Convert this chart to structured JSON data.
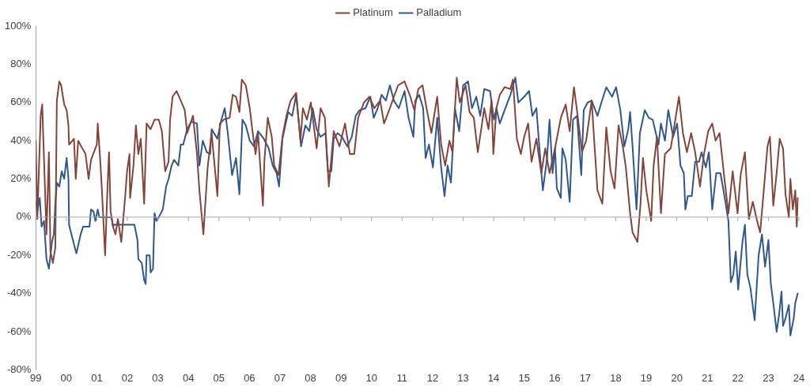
{
  "chart_data": {
    "type": "line",
    "legend": "top",
    "marker": "none",
    "line_style": "solid",
    "grid": false,
    "ref_lines": [
      {
        "axis": "y",
        "value": 0,
        "color": "#a6a6a6"
      }
    ],
    "xlim": [
      1999,
      2024
    ],
    "xticks": [
      {
        "value": 1999,
        "label": "99"
      },
      {
        "value": 2000,
        "label": "00"
      },
      {
        "value": 2001,
        "label": "01"
      },
      {
        "value": 2002,
        "label": "02"
      },
      {
        "value": 2003,
        "label": "03"
      },
      {
        "value": 2004,
        "label": "04"
      },
      {
        "value": 2005,
        "label": "05"
      },
      {
        "value": 2006,
        "label": "06"
      },
      {
        "value": 2007,
        "label": "07"
      },
      {
        "value": 2008,
        "label": "08"
      },
      {
        "value": 2009,
        "label": "09"
      },
      {
        "value": 2010,
        "label": "10"
      },
      {
        "value": 2011,
        "label": "11"
      },
      {
        "value": 2012,
        "label": "12"
      },
      {
        "value": 2013,
        "label": "13"
      },
      {
        "value": 2014,
        "label": "14"
      },
      {
        "value": 2015,
        "label": "15"
      },
      {
        "value": 2016,
        "label": "16"
      },
      {
        "value": 2017,
        "label": "17"
      },
      {
        "value": 2018,
        "label": "18"
      },
      {
        "value": 2019,
        "label": "19"
      },
      {
        "value": 2020,
        "label": "20"
      },
      {
        "value": 2021,
        "label": "21"
      },
      {
        "value": 2022,
        "label": "22"
      },
      {
        "value": 2023,
        "label": "23"
      },
      {
        "value": 2024,
        "label": "24"
      }
    ],
    "ylim": [
      -80,
      100
    ],
    "yticks": [
      {
        "value": -80,
        "label": "-80%"
      },
      {
        "value": -60,
        "label": "-60%"
      },
      {
        "value": -40,
        "label": "-40%"
      },
      {
        "value": -20,
        "label": "-20%"
      },
      {
        "value": 0,
        "label": "0%"
      },
      {
        "value": 20,
        "label": "20%"
      },
      {
        "value": 40,
        "label": "40%"
      },
      {
        "value": 60,
        "label": "60%"
      },
      {
        "value": 80,
        "label": "80%"
      },
      {
        "value": 100,
        "label": "100%"
      }
    ],
    "series": [
      {
        "name": "Platinum",
        "color": "#84443a",
        "x": [
          1999.0,
          1999.05,
          1999.16,
          1999.21,
          1999.27,
          1999.35,
          1999.43,
          1999.48,
          1999.56,
          1999.64,
          1999.69,
          1999.77,
          1999.83,
          1999.93,
          2000.01,
          2000.07,
          2000.09,
          2000.2,
          2000.25,
          2000.31,
          2000.39,
          2000.49,
          2000.63,
          2000.73,
          2000.81,
          2001.0,
          2001.03,
          2001.11,
          2001.16,
          2001.27,
          2001.35,
          2001.4,
          2001.45,
          2001.53,
          2001.61,
          2001.69,
          2001.8,
          2001.93,
          2001.99,
          2002.07,
          2002.09,
          2002.2,
          2002.28,
          2002.36,
          2002.44,
          2002.55,
          2002.63,
          2002.76,
          2002.89,
          2003.03,
          2003.13,
          2003.24,
          2003.35,
          2003.4,
          2003.48,
          2003.61,
          2003.75,
          2003.88,
          2003.96,
          2004.15,
          2004.28,
          2004.36,
          2004.49,
          2004.63,
          2004.76,
          2004.95,
          2005.03,
          2005.16,
          2005.35,
          2005.45,
          2005.56,
          2005.67,
          2005.75,
          2005.88,
          2006.01,
          2006.09,
          2006.2,
          2006.28,
          2006.44,
          2006.49,
          2006.6,
          2006.73,
          2006.81,
          2006.95,
          2007.08,
          2007.21,
          2007.35,
          2007.53,
          2007.67,
          2007.75,
          2007.88,
          2008.01,
          2008.2,
          2008.33,
          2008.47,
          2008.6,
          2008.76,
          2008.95,
          2009.13,
          2009.29,
          2009.43,
          2009.56,
          2009.75,
          2009.93,
          2010.09,
          2010.28,
          2010.41,
          2010.6,
          2010.73,
          2010.87,
          2011.08,
          2011.27,
          2011.4,
          2011.53,
          2011.67,
          2011.8,
          2011.96,
          2012.15,
          2012.28,
          2012.41,
          2012.55,
          2012.65,
          2012.79,
          2012.89,
          2013.08,
          2013.21,
          2013.35,
          2013.48,
          2013.61,
          2013.69,
          2013.83,
          2013.93,
          2013.99,
          2014.09,
          2014.2,
          2014.36,
          2014.55,
          2014.63,
          2014.76,
          2014.89,
          2015.0,
          2015.13,
          2015.24,
          2015.4,
          2015.56,
          2015.69,
          2015.83,
          2016.01,
          2016.2,
          2016.36,
          2016.49,
          2016.63,
          2016.76,
          2016.89,
          2017.03,
          2017.21,
          2017.29,
          2017.4,
          2017.56,
          2017.69,
          2017.83,
          2017.96,
          2018.09,
          2018.23,
          2018.33,
          2018.47,
          2018.55,
          2018.71,
          2018.81,
          2018.89,
          2019.0,
          2019.16,
          2019.24,
          2019.35,
          2019.48,
          2019.61,
          2019.8,
          2019.93,
          2020.07,
          2020.2,
          2020.33,
          2020.47,
          2020.6,
          2020.76,
          2020.89,
          2021.03,
          2021.16,
          2021.27,
          2021.4,
          2021.56,
          2021.69,
          2021.83,
          2021.99,
          2022.09,
          2022.23,
          2022.36,
          2022.49,
          2022.63,
          2022.73,
          2022.87,
          2022.97,
          2023.05,
          2023.16,
          2023.27,
          2023.37,
          2023.48,
          2023.56,
          2023.67,
          2023.72,
          2023.8,
          2023.88,
          2023.93,
          2023.96
        ],
        "values": [
          40,
          -1,
          53,
          59,
          30,
          -9,
          34,
          -18,
          -24,
          -16,
          61,
          71,
          69,
          59,
          56,
          48,
          38,
          40,
          41,
          20,
          40,
          37,
          33,
          20,
          30,
          38,
          49,
          30,
          16,
          -20,
          16,
          34,
          3,
          -5,
          -9,
          -1,
          -13,
          11,
          24,
          33,
          10,
          27,
          48,
          33,
          41,
          7,
          49,
          46,
          51,
          51,
          45,
          24,
          29,
          51,
          63,
          66,
          61,
          56,
          44,
          53,
          33,
          14,
          -9,
          26,
          44,
          11,
          49,
          51,
          52,
          64,
          63,
          55,
          72,
          69,
          57,
          46,
          33,
          44,
          6,
          30,
          52,
          42,
          27,
          22,
          42,
          53,
          61,
          65,
          40,
          57,
          51,
          60,
          36,
          57,
          52,
          16,
          45,
          37,
          49,
          33,
          33,
          52,
          60,
          63,
          57,
          61,
          49,
          57,
          63,
          69,
          71,
          63,
          56,
          67,
          69,
          57,
          44,
          63,
          38,
          27,
          40,
          34,
          73,
          60,
          69,
          55,
          52,
          34,
          48,
          57,
          46,
          61,
          33,
          57,
          64,
          68,
          67,
          72,
          41,
          33,
          42,
          49,
          29,
          41,
          23,
          36,
          23,
          36,
          52,
          59,
          45,
          68,
          52,
          34,
          40,
          61,
          41,
          14,
          7,
          47,
          24,
          15,
          48,
          37,
          26,
          2,
          -8,
          -13,
          7,
          31,
          14,
          -2,
          27,
          42,
          2,
          33,
          36,
          49,
          63,
          44,
          34,
          44,
          34,
          16,
          33,
          45,
          49,
          40,
          44,
          20,
          2,
          24,
          2,
          22,
          34,
          -1,
          8,
          -2,
          -8,
          18,
          37,
          42,
          6,
          23,
          41,
          36,
          12,
          0,
          20,
          4,
          14,
          -5,
          10
        ]
      },
      {
        "name": "Palladium",
        "color": "#2f5790",
        "x": [
          1999.0,
          1999.05,
          1999.13,
          1999.19,
          1999.27,
          1999.35,
          1999.43,
          1999.53,
          1999.59,
          1999.64,
          1999.69,
          1999.77,
          1999.85,
          1999.93,
          2000.01,
          2000.07,
          2000.09,
          2000.23,
          2000.33,
          2000.47,
          2000.55,
          2000.76,
          2000.81,
          2000.89,
          2000.95,
          2001.03,
          2001.08,
          2001.48,
          2001.53,
          2001.56,
          2002.23,
          2002.33,
          2002.36,
          2002.47,
          2002.55,
          2002.6,
          2002.63,
          2002.73,
          2002.76,
          2002.84,
          2002.89,
          2002.95,
          2003.03,
          2003.16,
          2003.27,
          2003.35,
          2003.45,
          2003.53,
          2003.67,
          2003.75,
          2003.83,
          2003.96,
          2004.09,
          2004.28,
          2004.36,
          2004.47,
          2004.6,
          2004.71,
          2004.76,
          2004.95,
          2005.08,
          2005.19,
          2005.29,
          2005.43,
          2005.56,
          2005.67,
          2005.77,
          2005.88,
          2006.01,
          2006.15,
          2006.28,
          2006.47,
          2006.63,
          2006.76,
          2006.89,
          2006.97,
          2007.08,
          2007.27,
          2007.4,
          2007.53,
          2007.69,
          2007.83,
          2007.96,
          2008.07,
          2008.2,
          2008.33,
          2008.49,
          2008.57,
          2008.68,
          2008.76,
          2008.89,
          2009.03,
          2009.21,
          2009.35,
          2009.48,
          2009.61,
          2009.8,
          2009.96,
          2010.07,
          2010.2,
          2010.33,
          2010.47,
          2010.6,
          2010.73,
          2010.89,
          2011.08,
          2011.21,
          2011.37,
          2011.43,
          2011.56,
          2011.69,
          2011.77,
          2011.88,
          2012.01,
          2012.15,
          2012.28,
          2012.39,
          2012.49,
          2012.6,
          2012.73,
          2012.87,
          2013.0,
          2013.16,
          2013.29,
          2013.43,
          2013.56,
          2013.69,
          2013.88,
          2014.01,
          2014.09,
          2014.2,
          2014.36,
          2014.55,
          2014.71,
          2014.81,
          2015.0,
          2015.16,
          2015.27,
          2015.4,
          2015.48,
          2015.61,
          2015.75,
          2015.83,
          2015.93,
          2016.01,
          2016.07,
          2016.2,
          2016.25,
          2016.36,
          2016.49,
          2016.6,
          2016.73,
          2016.87,
          2016.95,
          2017.08,
          2017.21,
          2017.4,
          2017.53,
          2017.69,
          2017.88,
          2018.01,
          2018.15,
          2018.28,
          2018.41,
          2018.47,
          2018.55,
          2018.68,
          2018.79,
          2018.95,
          2019.08,
          2019.21,
          2019.4,
          2019.48,
          2019.61,
          2019.72,
          2019.88,
          2020.01,
          2020.12,
          2020.23,
          2020.28,
          2020.36,
          2020.49,
          2020.6,
          2020.73,
          2020.81,
          2020.95,
          2021.05,
          2021.16,
          2021.29,
          2021.43,
          2021.56,
          2021.69,
          2021.77,
          2021.85,
          2021.93,
          2022.01,
          2022.15,
          2022.23,
          2022.31,
          2022.41,
          2022.55,
          2022.68,
          2022.79,
          2022.89,
          2023.0,
          2023.08,
          2023.16,
          2023.27,
          2023.35,
          2023.43,
          2023.48,
          2023.56,
          2023.67,
          2023.72,
          2023.83,
          2023.88,
          2023.96
        ],
        "values": [
          8,
          3,
          10,
          -5,
          -2,
          -22,
          -27,
          -13,
          -9,
          7,
          18,
          16,
          24,
          20,
          31,
          20,
          -4,
          -13,
          -19,
          -9,
          -5,
          -5,
          4,
          3,
          -2,
          4,
          0,
          0,
          -5,
          -4,
          -4,
          -12,
          -22,
          -24,
          -33,
          -35,
          -20,
          -20,
          -29,
          -27,
          2,
          -2,
          0,
          4,
          16,
          20,
          27,
          30,
          27,
          38,
          38,
          46,
          50,
          49,
          27,
          40,
          34,
          33,
          46,
          41,
          51,
          57,
          44,
          22,
          31,
          12,
          51,
          48,
          40,
          37,
          45,
          41,
          36,
          27,
          23,
          16,
          41,
          55,
          53,
          64,
          37,
          48,
          45,
          57,
          46,
          42,
          44,
          24,
          24,
          41,
          44,
          42,
          37,
          42,
          53,
          56,
          57,
          63,
          52,
          57,
          64,
          61,
          69,
          61,
          57,
          66,
          52,
          42,
          61,
          64,
          57,
          31,
          38,
          26,
          52,
          26,
          11,
          27,
          18,
          57,
          45,
          69,
          71,
          57,
          63,
          53,
          67,
          66,
          51,
          57,
          49,
          56,
          64,
          73,
          60,
          63,
          66,
          53,
          57,
          40,
          14,
          31,
          51,
          23,
          36,
          15,
          10,
          36,
          30,
          8,
          51,
          53,
          22,
          56,
          60,
          61,
          53,
          60,
          68,
          63,
          68,
          56,
          37,
          46,
          55,
          37,
          4,
          44,
          56,
          52,
          51,
          38,
          49,
          40,
          56,
          42,
          49,
          27,
          23,
          4,
          11,
          11,
          29,
          29,
          34,
          26,
          34,
          4,
          23,
          23,
          11,
          -2,
          -34,
          -30,
          -18,
          -38,
          -13,
          -4,
          -30,
          -37,
          -54,
          -20,
          -9,
          -26,
          -12,
          -35,
          -45,
          -60,
          -51,
          -39,
          -57,
          -53,
          -46,
          -62,
          -53,
          -45,
          -40
        ]
      }
    ]
  }
}
